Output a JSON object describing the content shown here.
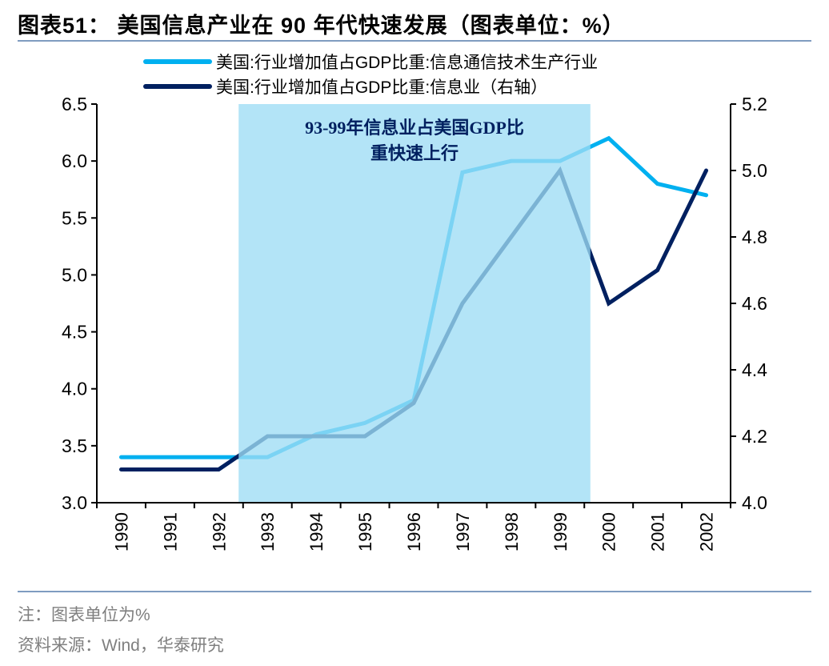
{
  "title": "图表51：  美国信息产业在 90 年代快速发展（图表单位：%）",
  "footer": {
    "note": "注：图表单位为%",
    "source": "资料来源：Wind，华泰研究"
  },
  "chart_data": {
    "type": "line",
    "categories": [
      "1990",
      "1991",
      "1992",
      "1993",
      "1994",
      "1995",
      "1996",
      "1997",
      "1998",
      "1999",
      "2000",
      "2001",
      "2002"
    ],
    "y_left": {
      "range": [
        3.0,
        6.5
      ],
      "ticks": [
        "3.0",
        "3.5",
        "4.0",
        "4.5",
        "5.0",
        "5.5",
        "6.0",
        "6.5"
      ]
    },
    "y_right": {
      "range": [
        4.0,
        5.2
      ],
      "ticks": [
        "4.0",
        "4.2",
        "4.4",
        "4.6",
        "4.8",
        "5.0",
        "5.2"
      ]
    },
    "series": [
      {
        "name": "美国:行业增加值占GDP比重:信息通信技术生产行业",
        "axis": "left",
        "color": "#00b0f0",
        "values": [
          3.4,
          3.4,
          3.4,
          3.4,
          3.6,
          3.7,
          3.9,
          5.9,
          6.0,
          6.0,
          6.2,
          5.8,
          5.7
        ]
      },
      {
        "name": "美国:行业增加值占GDP比重:信息业（右轴）",
        "axis": "right",
        "color": "#002060",
        "values": [
          4.1,
          4.1,
          4.1,
          4.2,
          4.2,
          4.2,
          4.3,
          4.6,
          4.8,
          5.0,
          4.6,
          4.7,
          5.0
        ]
      }
    ],
    "highlight": {
      "from": "1993",
      "to": "1999",
      "color": "#9ddcf5",
      "label_line1": "93-99年信息业占美国GDP比",
      "label_line2": "重快速上行",
      "label_color": "#002060"
    },
    "legend": "top",
    "grid": false
  }
}
